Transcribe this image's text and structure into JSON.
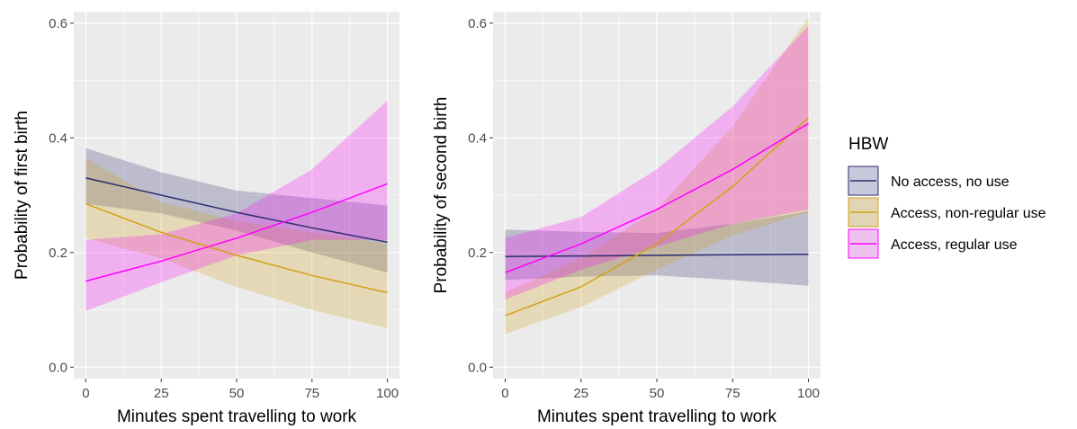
{
  "chart_data": [
    {
      "type": "line",
      "xlabel": "Minutes spent travelling to work",
      "ylabel": "Probability of first birth",
      "xlim": [
        -4,
        104
      ],
      "ylim": [
        -0.02,
        0.62
      ],
      "x_ticks": [
        0,
        25,
        50,
        75,
        100
      ],
      "x_tick_labels": [
        "0",
        "25",
        "50",
        "75",
        "100"
      ],
      "y_ticks": [
        0.0,
        0.2,
        0.4,
        0.6
      ],
      "y_tick_labels": [
        "0.0",
        "0.2",
        "0.4",
        "0.6"
      ],
      "grid": true,
      "series": [
        {
          "name": "No access, no use",
          "color": "#2e2e6e",
          "x": [
            0,
            25,
            50,
            75,
            100
          ],
          "y": [
            0.33,
            0.3,
            0.27,
            0.243,
            0.218
          ],
          "lower": [
            0.285,
            0.268,
            0.238,
            0.2,
            0.165
          ],
          "upper": [
            0.382,
            0.34,
            0.308,
            0.295,
            0.282
          ]
        },
        {
          "name": "Access, non-regular use",
          "color": "#d4a017",
          "x": [
            0,
            25,
            50,
            75,
            100
          ],
          "y": [
            0.285,
            0.235,
            0.195,
            0.16,
            0.13
          ],
          "lower": [
            0.225,
            0.19,
            0.14,
            0.1,
            0.068
          ],
          "upper": [
            0.365,
            0.288,
            0.255,
            0.235,
            0.215
          ]
        },
        {
          "name": "Access, regular use",
          "color": "#ff00ff",
          "x": [
            0,
            25,
            50,
            75,
            100
          ],
          "y": [
            0.15,
            0.185,
            0.225,
            0.27,
            0.32
          ],
          "lower": [
            0.098,
            0.148,
            0.195,
            0.222,
            0.222
          ],
          "upper": [
            0.222,
            0.232,
            0.268,
            0.345,
            0.465
          ]
        }
      ]
    },
    {
      "type": "line",
      "xlabel": "Minutes spent travelling to work",
      "ylabel": "Probability of second birth",
      "xlim": [
        -4,
        104
      ],
      "ylim": [
        -0.02,
        0.62
      ],
      "x_ticks": [
        0,
        25,
        50,
        75,
        100
      ],
      "x_tick_labels": [
        "0",
        "25",
        "50",
        "75",
        "100"
      ],
      "y_ticks": [
        0.0,
        0.2,
        0.4,
        0.6
      ],
      "y_tick_labels": [
        "0.0",
        "0.2",
        "0.4",
        "0.6"
      ],
      "grid": true,
      "series": [
        {
          "name": "No access, no use",
          "color": "#2e2e6e",
          "x": [
            0,
            25,
            50,
            75,
            100
          ],
          "y": [
            0.193,
            0.194,
            0.195,
            0.196,
            0.197
          ],
          "lower": [
            0.152,
            0.158,
            0.16,
            0.152,
            0.142
          ],
          "upper": [
            0.24,
            0.236,
            0.234,
            0.25,
            0.272
          ]
        },
        {
          "name": "Access, non-regular use",
          "color": "#d4a017",
          "x": [
            0,
            25,
            50,
            75,
            100
          ],
          "y": [
            0.09,
            0.14,
            0.215,
            0.315,
            0.435
          ],
          "lower": [
            0.058,
            0.105,
            0.17,
            0.23,
            0.27
          ],
          "upper": [
            0.13,
            0.19,
            0.275,
            0.42,
            0.61
          ]
        },
        {
          "name": "Access, regular use",
          "color": "#ff00ff",
          "x": [
            0,
            25,
            50,
            75,
            100
          ],
          "y": [
            0.165,
            0.215,
            0.275,
            0.345,
            0.425
          ],
          "lower": [
            0.118,
            0.17,
            0.21,
            0.25,
            0.275
          ],
          "upper": [
            0.225,
            0.262,
            0.345,
            0.455,
            0.595
          ]
        }
      ]
    }
  ],
  "legend": {
    "title": "HBW",
    "position": "right",
    "items": [
      {
        "label": "No access, no use",
        "line_color": "#2e2e6e",
        "fill_color": "#c8c8dc"
      },
      {
        "label": "Access, non-regular use",
        "line_color": "#d4a017",
        "fill_color": "#e0d6b4"
      },
      {
        "label": "Access, regular use",
        "line_color": "#ff00ff",
        "fill_color": "#eec2ee"
      }
    ]
  },
  "style": {
    "panel_bg": "#ebebeb",
    "grid_color": "#ffffff",
    "band_opacity": 0.25
  }
}
